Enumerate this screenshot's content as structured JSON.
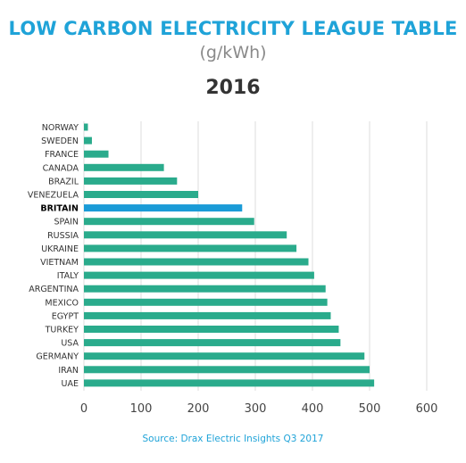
{
  "header": {
    "title": "LOW CARBON ELECTRICITY LEAGUE TABLE",
    "subtitle": "(g/kWh)",
    "year": "2016"
  },
  "source": "Source: Drax Electric Insights Q3 2017",
  "colors": {
    "bar": "#2aab8c",
    "highlight": "#1a9bd7",
    "grid": "#dcdcdc"
  },
  "chart_data": {
    "type": "bar",
    "orientation": "horizontal",
    "categories": [
      "NORWAY",
      "SWEDEN",
      "FRANCE",
      "CANADA",
      "BRAZIL",
      "VENEZUELA",
      "BRITAIN",
      "SPAIN",
      "RUSSIA",
      "UKRAINE",
      "VIETNAM",
      "ITALY",
      "ARGENTINA",
      "MEXICO",
      "EGYPT",
      "TURKEY",
      "USA",
      "GERMANY",
      "IRAN",
      "UAE"
    ],
    "values": [
      7,
      14,
      43,
      140,
      163,
      200,
      277,
      298,
      355,
      372,
      393,
      403,
      423,
      426,
      432,
      446,
      449,
      491,
      500,
      508
    ],
    "highlight": "BRITAIN",
    "xlim": [
      0,
      600
    ],
    "xticks": [
      0,
      100,
      200,
      300,
      400,
      500,
      600
    ],
    "grid": true,
    "legend": "none"
  }
}
